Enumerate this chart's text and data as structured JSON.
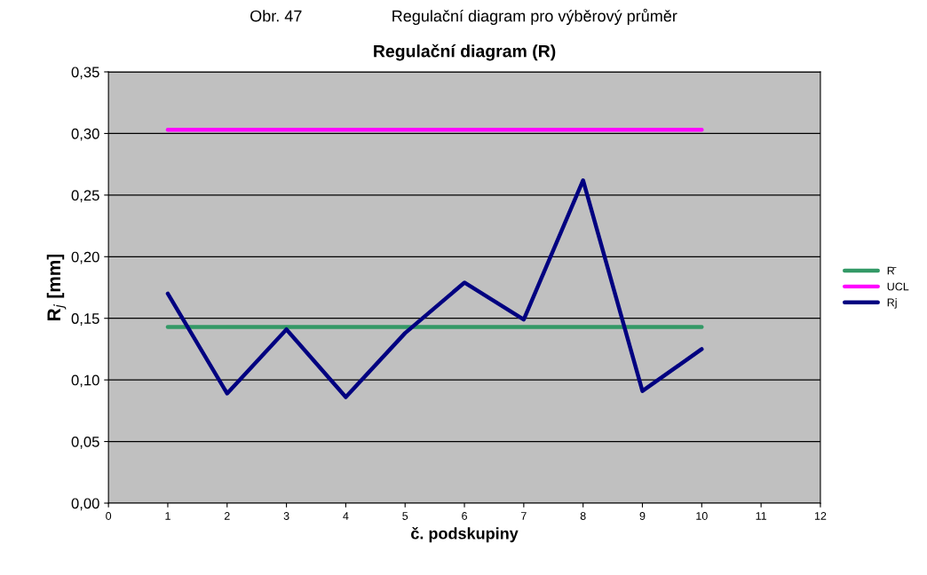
{
  "chart_data": {
    "type": "line",
    "title": "Regulační diagram (R)",
    "xlabel": "č. podskupiny",
    "ylabel": "R$_{j}$ [mm]",
    "annotations": [
      "Obr. 47                    Regulační diagram pro výběrový průměr"
    ],
    "x": [
      1,
      2,
      3,
      4,
      5,
      6,
      7,
      8,
      9,
      10
    ],
    "series": [
      {
        "name": "R̄",
        "color": "#339966",
        "values": [
          0.143,
          0.143,
          0.143,
          0.143,
          0.143,
          0.143,
          0.143,
          0.143,
          0.143,
          0.143
        ]
      },
      {
        "name": "UCL",
        "color": "#ff00ff",
        "values": [
          0.303,
          0.303,
          0.303,
          0.303,
          0.303,
          0.303,
          0.303,
          0.303,
          0.303,
          0.303
        ]
      },
      {
        "name": "Rj",
        "color": "#000080",
        "values": [
          0.17,
          0.089,
          0.141,
          0.086,
          0.138,
          0.179,
          0.149,
          0.262,
          0.091,
          0.125
        ]
      }
    ],
    "xlim": [
      0,
      12
    ],
    "xticks": [
      0,
      1,
      2,
      3,
      4,
      5,
      6,
      7,
      8,
      9,
      10,
      11,
      12
    ],
    "ylim": [
      0,
      0.35
    ],
    "yticks": [
      {
        "value": 0,
        "label": "0,00"
      },
      {
        "value": 0.05,
        "label": "0,05"
      },
      {
        "value": 0.1,
        "label": "0,10"
      },
      {
        "value": 0.15,
        "label": "0,15"
      },
      {
        "value": 0.2,
        "label": "0,20"
      },
      {
        "value": 0.25,
        "label": "0,25"
      },
      {
        "value": 0.3,
        "label": "0,30"
      },
      {
        "value": 0.35,
        "label": "0,35"
      }
    ],
    "grid": "y",
    "legend": "right",
    "marker": "none",
    "line_style": "solid"
  }
}
